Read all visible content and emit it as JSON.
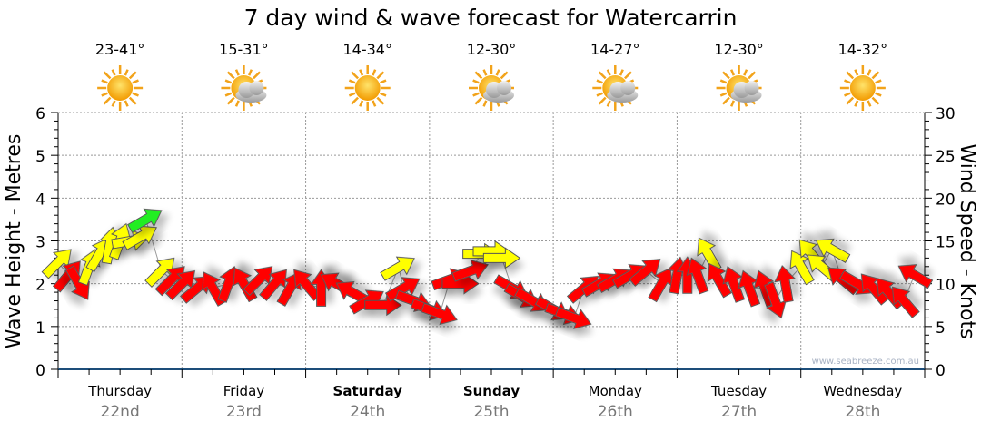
{
  "chart_data": {
    "type": "scatter",
    "title": "7 day wind & wave forecast for Watercarrin",
    "ylabel_left": "Wave Height - Metres",
    "ylabel_right": "Wind Speed - Knots",
    "ylim_left": [
      0,
      6
    ],
    "ylim_right": [
      0,
      30
    ],
    "yticks_left": [
      "0",
      "1",
      "2",
      "3",
      "4",
      "5",
      "6"
    ],
    "yticks_right": [
      "0",
      "5",
      "10",
      "15",
      "20",
      "25",
      "30"
    ],
    "grid": true,
    "watermark": "www.seabreeze.com.au",
    "days": [
      {
        "day": "Thursday",
        "date": "22nd",
        "temp": "23-41°",
        "icon": "sun-icon",
        "bold": false
      },
      {
        "day": "Friday",
        "date": "23rd",
        "temp": "15-31°",
        "icon": "sun-cloud-icon",
        "bold": false
      },
      {
        "day": "Saturday",
        "date": "24th",
        "temp": "14-34°",
        "icon": "sun-icon",
        "bold": true
      },
      {
        "day": "Sunday",
        "date": "25th",
        "temp": "12-30°",
        "icon": "sun-cloud-icon",
        "bold": true
      },
      {
        "day": "Monday",
        "date": "26th",
        "temp": "14-27°",
        "icon": "sun-cloud-icon",
        "bold": false
      },
      {
        "day": "Tuesday",
        "date": "27th",
        "temp": "12-30°",
        "icon": "sun-cloud-icon",
        "bold": false
      },
      {
        "day": "Wednesday",
        "date": "28th",
        "temp": "14-32°",
        "icon": "sun-icon",
        "bold": false
      }
    ],
    "colors": {
      "red": "#ff0000",
      "yellow": "#ffff00",
      "green": "#22ee22"
    },
    "wind_series_fields": [
      "hour",
      "speed_knots",
      "arrow_bearing_deg",
      "color"
    ],
    "wind": [
      [
        0,
        12.5,
        45,
        "yellow"
      ],
      [
        2,
        11,
        40,
        "red"
      ],
      [
        4,
        10,
        150,
        "red"
      ],
      [
        6,
        12,
        20,
        "yellow"
      ],
      [
        8,
        13.5,
        30,
        "yellow"
      ],
      [
        10,
        14.5,
        10,
        "yellow"
      ],
      [
        12,
        15,
        20,
        "yellow"
      ],
      [
        14,
        15,
        80,
        "yellow"
      ],
      [
        16,
        15.5,
        60,
        "yellow"
      ],
      [
        17,
        17.5,
        60,
        "green"
      ],
      [
        20,
        11.5,
        45,
        "yellow"
      ],
      [
        22,
        10.5,
        45,
        "red"
      ],
      [
        24,
        10,
        45,
        "red"
      ],
      [
        27,
        9.5,
        50,
        "red"
      ],
      [
        30,
        9.5,
        330,
        "red"
      ],
      [
        33,
        10,
        20,
        "red"
      ],
      [
        36,
        10,
        330,
        "red"
      ],
      [
        39,
        10.5,
        45,
        "red"
      ],
      [
        42,
        10,
        40,
        "red"
      ],
      [
        45,
        9.5,
        30,
        "red"
      ],
      [
        48,
        10,
        320,
        "red"
      ],
      [
        51,
        9.5,
        0,
        "red"
      ],
      [
        54,
        10,
        300,
        "red"
      ],
      [
        57,
        9,
        300,
        "red"
      ],
      [
        60,
        8,
        60,
        "red"
      ],
      [
        63,
        7.5,
        90,
        "red"
      ],
      [
        66,
        11.9,
        60,
        "yellow"
      ],
      [
        67,
        9.5,
        60,
        "red"
      ],
      [
        69,
        8,
        110,
        "red"
      ],
      [
        72,
        7,
        110,
        "red"
      ],
      [
        74,
        6.5,
        110,
        "red"
      ],
      [
        76,
        10.5,
        70,
        "red"
      ],
      [
        78,
        10,
        90,
        "red"
      ],
      [
        80,
        11.5,
        70,
        "red"
      ],
      [
        82,
        13.5,
        90,
        "yellow"
      ],
      [
        84,
        13.8,
        90,
        "yellow"
      ],
      [
        86,
        13,
        90,
        "yellow"
      ],
      [
        88,
        9.5,
        120,
        "red"
      ],
      [
        90,
        8.5,
        120,
        "red"
      ],
      [
        92,
        8,
        120,
        "red"
      ],
      [
        96,
        7,
        120,
        "red"
      ],
      [
        98,
        6.5,
        110,
        "red"
      ],
      [
        100,
        6,
        110,
        "red"
      ],
      [
        102,
        9.5,
        50,
        "red"
      ],
      [
        105,
        10,
        60,
        "red"
      ],
      [
        108,
        10.5,
        60,
        "red"
      ],
      [
        111,
        11,
        60,
        "red"
      ],
      [
        114,
        11.5,
        50,
        "red"
      ],
      [
        117,
        10,
        30,
        "red"
      ],
      [
        120,
        11,
        10,
        "red"
      ],
      [
        122,
        11,
        0,
        "red"
      ],
      [
        124,
        11,
        340,
        "red"
      ],
      [
        126,
        13.5,
        330,
        "yellow"
      ],
      [
        128,
        10.5,
        330,
        "red"
      ],
      [
        131,
        10,
        340,
        "red"
      ],
      [
        134,
        9.5,
        340,
        "red"
      ],
      [
        137,
        9.5,
        340,
        "red"
      ],
      [
        139,
        8,
        160,
        "red"
      ],
      [
        141,
        10,
        350,
        "red"
      ],
      [
        144,
        12,
        330,
        "yellow"
      ],
      [
        146,
        13.5,
        320,
        "yellow"
      ],
      [
        148,
        12,
        310,
        "yellow"
      ],
      [
        150,
        14,
        300,
        "yellow"
      ],
      [
        152,
        10.5,
        310,
        "red"
      ],
      [
        155,
        10,
        120,
        "red"
      ],
      [
        158,
        9.5,
        320,
        "red"
      ],
      [
        161,
        9,
        320,
        "red"
      ],
      [
        164,
        8,
        320,
        "red"
      ],
      [
        166,
        11,
        300,
        "red"
      ]
    ]
  }
}
